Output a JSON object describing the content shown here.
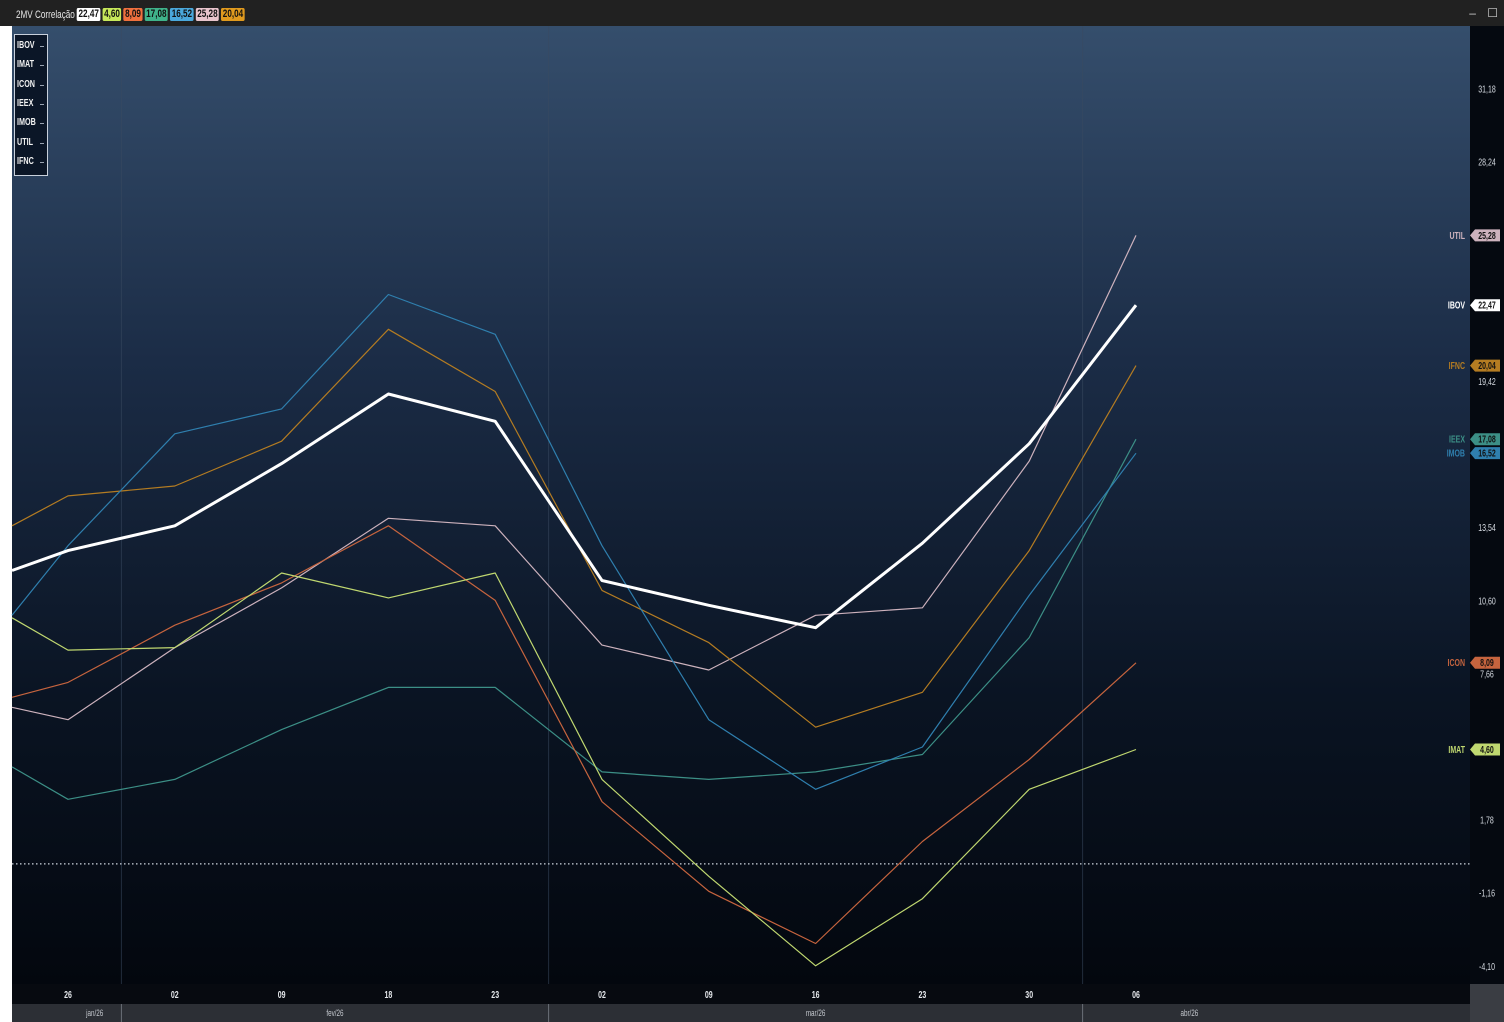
{
  "window": {
    "title": "2MV Correlação",
    "controls": "– ☐",
    "badges": [
      {
        "value": "22,47",
        "color": "#ffffff"
      },
      {
        "value": "4,60",
        "color": "#c7e85a"
      },
      {
        "value": "8,09",
        "color": "#f0703e"
      },
      {
        "value": "17,08",
        "color": "#3fb38a"
      },
      {
        "value": "16,52",
        "color": "#4aa8dc"
      },
      {
        "value": "25,28",
        "color": "#e8c4cc"
      },
      {
        "value": "20,04",
        "color": "#e09a1e"
      }
    ]
  },
  "legend": [
    "IBOV",
    "IMAT",
    "ICON",
    "IEEX",
    "IMOB",
    "UTIL",
    "IFNC"
  ],
  "chart_data": {
    "type": "line",
    "x": [
      "26",
      "02",
      "09",
      "18",
      "23",
      "02",
      "09",
      "16",
      "23",
      "30",
      "06"
    ],
    "months": [
      {
        "label": "jan/26",
        "start": 0,
        "end": 0.5
      },
      {
        "label": "fev/26",
        "start": 0.5,
        "end": 4.5
      },
      {
        "label": "mar/26",
        "start": 4.5,
        "end": 9.5
      },
      {
        "label": "abr/26",
        "start": 9.5,
        "end": 11.5
      }
    ],
    "y_ticks": [
      31.18,
      28.24,
      19.42,
      13.54,
      10.6,
      7.66,
      1.78,
      -1.16,
      -4.1
    ],
    "y_tick_labels": [
      "31,18",
      "28,24",
      "19,42",
      "13,54",
      "10,60",
      "7,66",
      "1,78",
      "-1,16",
      "-4,10"
    ],
    "ylim": [
      -4.83,
      33.7
    ],
    "zero_line": 0,
    "x_left_value": -0.5,
    "series": [
      {
        "name": "UTIL",
        "color": "#cdb2bd",
        "width": 1.2,
        "start": 6.3,
        "values": [
          5.8,
          8.7,
          11.1,
          13.9,
          13.6,
          8.8,
          7.8,
          10.0,
          10.3,
          16.2,
          25.28
        ],
        "last_label": "25,28"
      },
      {
        "name": "IFNC",
        "color": "#b47c22",
        "width": 1.2,
        "start": 13.6,
        "values": [
          14.8,
          15.2,
          17.0,
          21.5,
          19.0,
          11.0,
          8.9,
          5.5,
          6.9,
          12.6,
          20.04
        ],
        "last_label": "20,04"
      },
      {
        "name": "IEEX",
        "color": "#3c8f86",
        "width": 1.2,
        "start": 3.9,
        "values": [
          2.6,
          3.4,
          5.4,
          7.1,
          7.1,
          3.7,
          3.4,
          3.7,
          4.4,
          9.1,
          17.08
        ],
        "last_label": "17,08"
      },
      {
        "name": "IMOB",
        "color": "#2f7fae",
        "width": 1.2,
        "start": 10.0,
        "values": [
          12.8,
          17.3,
          18.3,
          22.9,
          21.3,
          12.8,
          5.8,
          3.0,
          4.7,
          10.8,
          16.52
        ],
        "last_label": "16,52"
      },
      {
        "name": "ICON",
        "color": "#c6643e",
        "width": 1.2,
        "start": 6.7,
        "values": [
          7.3,
          9.6,
          11.3,
          13.6,
          10.6,
          2.5,
          -1.1,
          -3.2,
          0.9,
          4.2,
          8.09
        ],
        "last_label": "8,09"
      },
      {
        "name": "IMAT",
        "color": "#c0d870",
        "width": 1.2,
        "start": 9.9,
        "values": [
          8.6,
          8.7,
          11.7,
          10.7,
          11.7,
          3.4,
          -0.5,
          -4.1,
          -1.4,
          3.0,
          4.6
        ],
        "last_label": "4,60"
      },
      {
        "name": "IBOV",
        "color": "#ffffff",
        "width": 3,
        "start": 11.8,
        "values": [
          12.6,
          13.6,
          16.1,
          18.9,
          17.8,
          11.4,
          10.4,
          9.5,
          12.9,
          16.9,
          22.47
        ],
        "last_label": "22,47"
      }
    ]
  }
}
